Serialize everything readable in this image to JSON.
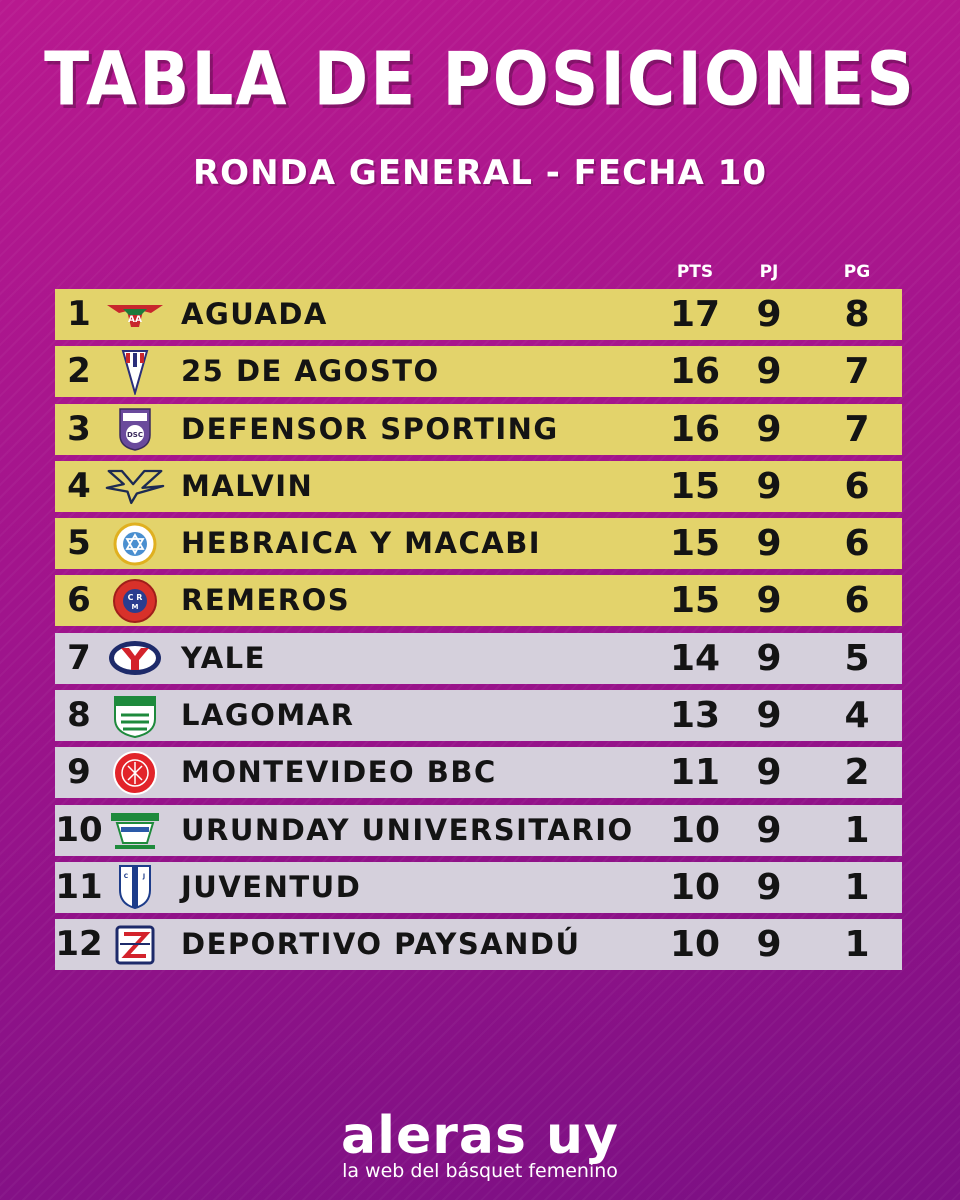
{
  "header": {
    "title": "TABLA DE POSICIONES",
    "subtitle": "RONDA GENERAL - FECHA 10"
  },
  "columns": {
    "pts": "PTS",
    "pj": "PJ",
    "pg": "PG"
  },
  "colors": {
    "qualified_row": "#e3d36b",
    "other_row": "#d5d0dc",
    "background": "#a0148c"
  },
  "rows": [
    {
      "pos": "1",
      "team": "AGUADA",
      "pts": "17",
      "pj": "9",
      "pg": "8",
      "icon": "aguada-crest-icon"
    },
    {
      "pos": "2",
      "team": "25 DE AGOSTO",
      "pts": "16",
      "pj": "9",
      "pg": "7",
      "icon": "25-de-agosto-crest-icon"
    },
    {
      "pos": "3",
      "team": "DEFENSOR SPORTING",
      "pts": "16",
      "pj": "9",
      "pg": "7",
      "icon": "defensor-sporting-crest-icon"
    },
    {
      "pos": "4",
      "team": "MALVIN",
      "pts": "15",
      "pj": "9",
      "pg": "6",
      "icon": "malvin-crest-icon"
    },
    {
      "pos": "5",
      "team": "HEBRAICA Y MACABI",
      "pts": "15",
      "pj": "9",
      "pg": "6",
      "icon": "hebraica-macabi-crest-icon"
    },
    {
      "pos": "6",
      "team": "REMEROS",
      "pts": "15",
      "pj": "9",
      "pg": "6",
      "icon": "remeros-crest-icon"
    },
    {
      "pos": "7",
      "team": "YALE",
      "pts": "14",
      "pj": "9",
      "pg": "5",
      "icon": "yale-crest-icon"
    },
    {
      "pos": "8",
      "team": "LAGOMAR",
      "pts": "13",
      "pj": "9",
      "pg": "4",
      "icon": "lagomar-crest-icon"
    },
    {
      "pos": "9",
      "team": "MONTEVIDEO BBC",
      "pts": "11",
      "pj": "9",
      "pg": "2",
      "icon": "montevideo-bbc-crest-icon"
    },
    {
      "pos": "10",
      "team": "URUNDAY UNIVERSITARIO",
      "pts": "10",
      "pj": "9",
      "pg": "1",
      "icon": "urunday-universitario-crest-icon"
    },
    {
      "pos": "11",
      "team": "JUVENTUD",
      "pts": "10",
      "pj": "9",
      "pg": "1",
      "icon": "juventud-crest-icon"
    },
    {
      "pos": "12",
      "team": "DEPORTIVO PAYSANDÚ",
      "pts": "10",
      "pj": "9",
      "pg": "1",
      "icon": "deportivo-paysandu-crest-icon"
    }
  ],
  "footer": {
    "brand": "aleras uy",
    "tagline": "la web del básquet femenino"
  }
}
